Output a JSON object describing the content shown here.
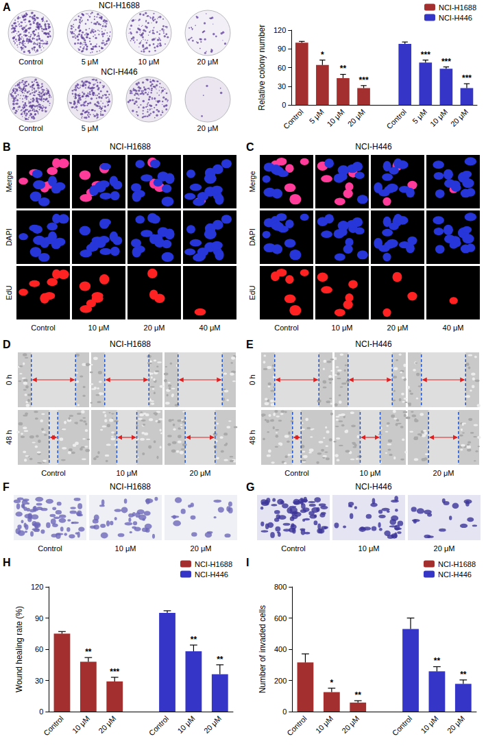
{
  "figure": {
    "plates": {
      "letter": "A",
      "rows": [
        {
          "title": "NCI-H1688",
          "labels": [
            "Control",
            "5 μM",
            "10 μM",
            "20 μM"
          ]
        },
        {
          "title": "NCI-H446",
          "labels": [
            "Control",
            "5 μM",
            null,
            "20 μM"
          ]
        }
      ]
    },
    "edu": [
      {
        "letter": "B",
        "title": "NCI-H1688",
        "rows": [
          "Merge",
          "DAPI",
          "EdU"
        ],
        "columns": [
          "Control",
          "10 μM",
          "20 μM",
          "40 μM"
        ]
      },
      {
        "letter": "C",
        "title": "NCI-H446",
        "rows": [
          "Merge",
          "DAPI",
          "EdU"
        ],
        "columns": [
          "Control",
          "10 μM",
          "20 μM",
          "40 μM"
        ]
      }
    ],
    "wound": [
      {
        "letter": "D",
        "title": "NCI-H1688",
        "rows": [
          "0 h",
          "48 h"
        ],
        "columns": [
          "Control",
          "10 μM",
          "20 μM"
        ]
      },
      {
        "letter": "E",
        "title": "NCI-H446",
        "rows": [
          "0 h",
          "48 h"
        ],
        "columns": [
          "Control",
          "10 μM",
          "20 μM"
        ]
      }
    ],
    "transwell": [
      {
        "letter": "F",
        "title": "NCI-H1688",
        "columns": [
          "Control",
          "10 μM",
          "20 μM"
        ]
      },
      {
        "letter": "G",
        "title": "NCI-H446",
        "columns": [
          "Control",
          "10 μM",
          "20 μM"
        ]
      }
    ],
    "chart_letters": [
      null,
      "H",
      "I"
    ]
  },
  "chart_data": [
    {
      "type": "bar",
      "y_label": "Relative colony number",
      "categories": [
        "Control",
        "5 μM",
        "10 μM",
        "20 μM",
        null,
        "Control",
        "5 μM",
        "10 μM",
        "20 μM"
      ],
      "series": [
        {
          "name": "NCI-H1688",
          "color": "#a3302f",
          "values": [
            100,
            64,
            43,
            27,
            null,
            null,
            null,
            null,
            null
          ],
          "errors": [
            2,
            8,
            6,
            4,
            null,
            null,
            null,
            null,
            null
          ],
          "significance": [
            null,
            "*",
            "**",
            "***",
            null,
            null,
            null,
            null,
            null
          ]
        },
        {
          "name": "NCI-H446",
          "color": "#3535c8",
          "values": [
            null,
            null,
            null,
            null,
            null,
            98,
            68,
            58,
            27
          ],
          "errors": [
            null,
            null,
            null,
            null,
            null,
            3,
            4,
            3,
            7
          ],
          "significance": [
            null,
            null,
            null,
            null,
            null,
            null,
            "***",
            "***",
            "***"
          ]
        }
      ],
      "ylim": [
        0,
        120
      ],
      "yticks": [
        0,
        30,
        60,
        90,
        120
      ],
      "grid": false,
      "legend": "top-right"
    },
    {
      "type": "bar",
      "y_label": "Wound healing rate (%)",
      "categories": [
        "Control",
        "10 μM",
        "20 μM",
        null,
        "Control",
        "10 μM",
        "20 μM"
      ],
      "series": [
        {
          "name": "NCI-H1688",
          "color": "#a3302f",
          "values": [
            75,
            48,
            29,
            null,
            null,
            null,
            null
          ],
          "errors": [
            2,
            4,
            4,
            null,
            null,
            null,
            null
          ],
          "significance": [
            null,
            "**",
            "***",
            null,
            null,
            null,
            null
          ]
        },
        {
          "name": "NCI-H446",
          "color": "#3535c8",
          "values": [
            null,
            null,
            null,
            null,
            95,
            58,
            36
          ],
          "errors": [
            null,
            null,
            null,
            null,
            2,
            6,
            9
          ],
          "significance": [
            null,
            null,
            null,
            null,
            null,
            "**",
            "**"
          ]
        }
      ],
      "ylim": [
        0,
        120
      ],
      "yticks": [
        0,
        30,
        60,
        90,
        120
      ],
      "grid": false,
      "legend": "top-right"
    },
    {
      "type": "bar",
      "y_label": "Number of invaded cells",
      "categories": [
        "Control",
        "10 μM",
        "20 μM",
        null,
        "Control",
        "10 μM",
        "20 μM"
      ],
      "series": [
        {
          "name": "NCI-H1688",
          "color": "#a3302f",
          "values": [
            315,
            125,
            58,
            null,
            null,
            null,
            null
          ],
          "errors": [
            55,
            25,
            12,
            null,
            null,
            null,
            null
          ],
          "significance": [
            null,
            "*",
            "**",
            null,
            null,
            null,
            null
          ]
        },
        {
          "name": "NCI-H446",
          "color": "#3535c8",
          "values": [
            null,
            null,
            null,
            null,
            530,
            258,
            178
          ],
          "errors": [
            null,
            null,
            null,
            null,
            70,
            30,
            25
          ],
          "significance": [
            null,
            null,
            null,
            null,
            null,
            "**",
            "**"
          ]
        }
      ],
      "ylim": [
        0,
        800
      ],
      "yticks": [
        0,
        200,
        400,
        600,
        800
      ],
      "grid": false,
      "legend": "top-right"
    }
  ]
}
